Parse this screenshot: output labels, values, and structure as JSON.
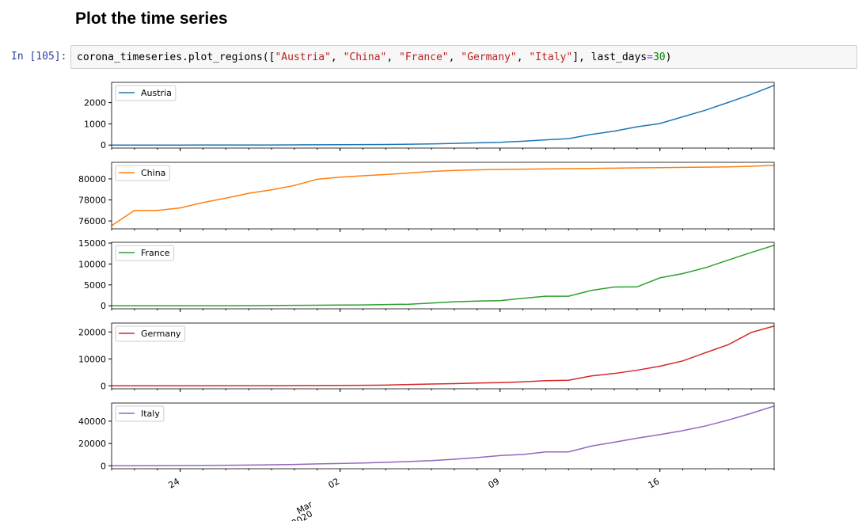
{
  "header": {
    "title": "Plot the time series"
  },
  "cell": {
    "prompt": "In [105]:",
    "code": [
      "corona_timeseries.plot_regions([",
      "\"Austria\"",
      ", ",
      "\"China\"",
      ", ",
      "\"France\"",
      ", ",
      "\"Germany\"",
      ", ",
      "\"Italy\"",
      "], last_days",
      "=",
      "30",
      ")"
    ]
  },
  "chart_data": [
    {
      "type": "line",
      "x": [
        "2020-02-21",
        "2020-02-22",
        "2020-02-23",
        "2020-02-24",
        "2020-02-25",
        "2020-02-26",
        "2020-02-27",
        "2020-02-28",
        "2020-02-29",
        "2020-03-01",
        "2020-03-02",
        "2020-03-03",
        "2020-03-04",
        "2020-03-05",
        "2020-03-06",
        "2020-03-07",
        "2020-03-08",
        "2020-03-09",
        "2020-03-10",
        "2020-03-11",
        "2020-03-12",
        "2020-03-13",
        "2020-03-14",
        "2020-03-15",
        "2020-03-16",
        "2020-03-17",
        "2020-03-18",
        "2020-03-19",
        "2020-03-20",
        "2020-03-21"
      ],
      "xlim": [
        "2020-02-21",
        "2020-03-21"
      ],
      "series": [
        {
          "name": "Austria",
          "color": "#1f77b4",
          "values": [
            0,
            0,
            0,
            0,
            2,
            2,
            3,
            3,
            9,
            14,
            18,
            21,
            29,
            41,
            55,
            79,
            104,
            131,
            182,
            246,
            302,
            504,
            655,
            860,
            1016,
            1332,
            1646,
            2013,
            2388,
            2814
          ]
        }
      ],
      "ylim": [
        -141,
        2955
      ],
      "yticks": [
        0,
        1000,
        2000
      ],
      "legend": "upper left"
    },
    {
      "type": "line",
      "x": [
        "2020-02-21",
        "2020-02-22",
        "2020-02-23",
        "2020-02-24",
        "2020-02-25",
        "2020-02-26",
        "2020-02-27",
        "2020-02-28",
        "2020-02-29",
        "2020-03-01",
        "2020-03-02",
        "2020-03-03",
        "2020-03-04",
        "2020-03-05",
        "2020-03-06",
        "2020-03-07",
        "2020-03-08",
        "2020-03-09",
        "2020-03-10",
        "2020-03-11",
        "2020-03-12",
        "2020-03-13",
        "2020-03-14",
        "2020-03-15",
        "2020-03-16",
        "2020-03-17",
        "2020-03-18",
        "2020-03-19",
        "2020-03-20",
        "2020-03-21"
      ],
      "xlim": [
        "2020-02-21",
        "2020-03-21"
      ],
      "series": [
        {
          "name": "China",
          "color": "#ff7f0e",
          "values": [
            75550,
            77000,
            77000,
            77240,
            77750,
            78170,
            78630,
            78960,
            79380,
            79970,
            80170,
            80300,
            80420,
            80560,
            80710,
            80810,
            80860,
            80900,
            80930,
            80950,
            80980,
            81000,
            81020,
            81050,
            81070,
            81100,
            81120,
            81150,
            81200,
            81293
          ]
        }
      ],
      "ylim": [
        75250,
        81580
      ],
      "yticks": [
        76000,
        78000,
        80000
      ],
      "legend": "upper left"
    },
    {
      "type": "line",
      "x": [
        "2020-02-21",
        "2020-02-22",
        "2020-02-23",
        "2020-02-24",
        "2020-02-25",
        "2020-02-26",
        "2020-02-27",
        "2020-02-28",
        "2020-02-29",
        "2020-03-01",
        "2020-03-02",
        "2020-03-03",
        "2020-03-04",
        "2020-03-05",
        "2020-03-06",
        "2020-03-07",
        "2020-03-08",
        "2020-03-09",
        "2020-03-10",
        "2020-03-11",
        "2020-03-12",
        "2020-03-13",
        "2020-03-14",
        "2020-03-15",
        "2020-03-16",
        "2020-03-17",
        "2020-03-18",
        "2020-03-19",
        "2020-03-20",
        "2020-03-21"
      ],
      "xlim": [
        "2020-02-21",
        "2020-03-21"
      ],
      "series": [
        {
          "name": "France",
          "color": "#2ca02c",
          "values": [
            12,
            12,
            12,
            12,
            14,
            18,
            38,
            57,
            100,
            130,
            191,
            204,
            288,
            380,
            656,
            957,
            1136,
            1219,
            1794,
            2293,
            2293,
            3681,
            4496,
            4532,
            6683,
            7715,
            9124,
            10970,
            12758,
            14463
          ]
        }
      ],
      "ylim": [
        -720,
        15190
      ],
      "yticks": [
        0,
        5000,
        10000,
        15000
      ],
      "legend": "upper left"
    },
    {
      "type": "line",
      "x": [
        "2020-02-21",
        "2020-02-22",
        "2020-02-23",
        "2020-02-24",
        "2020-02-25",
        "2020-02-26",
        "2020-02-27",
        "2020-02-28",
        "2020-02-29",
        "2020-03-01",
        "2020-03-02",
        "2020-03-03",
        "2020-03-04",
        "2020-03-05",
        "2020-03-06",
        "2020-03-07",
        "2020-03-08",
        "2020-03-09",
        "2020-03-10",
        "2020-03-11",
        "2020-03-12",
        "2020-03-13",
        "2020-03-14",
        "2020-03-15",
        "2020-03-16",
        "2020-03-17",
        "2020-03-18",
        "2020-03-19",
        "2020-03-20",
        "2020-03-21"
      ],
      "xlim": [
        "2020-02-21",
        "2020-03-21"
      ],
      "series": [
        {
          "name": "Germany",
          "color": "#d62728",
          "values": [
            16,
            16,
            16,
            16,
            17,
            27,
            46,
            48,
            79,
            130,
            159,
            196,
            262,
            482,
            670,
            799,
            1040,
            1176,
            1457,
            1908,
            2078,
            3675,
            4585,
            5795,
            7272,
            9257,
            12327,
            15320,
            19848,
            22213
          ]
        }
      ],
      "ylim": [
        -1100,
        23320
      ],
      "yticks": [
        0,
        10000,
        20000
      ],
      "legend": "upper left"
    },
    {
      "type": "line",
      "x": [
        "2020-02-21",
        "2020-02-22",
        "2020-02-23",
        "2020-02-24",
        "2020-02-25",
        "2020-02-26",
        "2020-02-27",
        "2020-02-28",
        "2020-02-29",
        "2020-03-01",
        "2020-03-02",
        "2020-03-03",
        "2020-03-04",
        "2020-03-05",
        "2020-03-06",
        "2020-03-07",
        "2020-03-08",
        "2020-03-09",
        "2020-03-10",
        "2020-03-11",
        "2020-03-12",
        "2020-03-13",
        "2020-03-14",
        "2020-03-15",
        "2020-03-16",
        "2020-03-17",
        "2020-03-18",
        "2020-03-19",
        "2020-03-20",
        "2020-03-21"
      ],
      "xlim": [
        "2020-02-21",
        "2020-03-21"
      ],
      "series": [
        {
          "name": "Italy",
          "color": "#9467bd",
          "values": [
            20,
            62,
            155,
            229,
            322,
            453,
            655,
            888,
            1128,
            1694,
            2036,
            2502,
            3089,
            3858,
            4636,
            5883,
            7375,
            9172,
            10149,
            12462,
            12462,
            17660,
            21157,
            24747,
            27980,
            31506,
            35713,
            41035,
            47021,
            53578
          ]
        }
      ],
      "ylim": [
        -2660,
        56260
      ],
      "yticks": [
        0,
        20000,
        40000
      ],
      "legend": "upper left",
      "xticks": [
        {
          "value": "2020-02-24",
          "label": "24"
        },
        {
          "value": "2020-03-02",
          "label": "02"
        },
        {
          "value": "2020-03-09",
          "label": "09"
        },
        {
          "value": "2020-03-16",
          "label": "16"
        }
      ],
      "x_major_label": {
        "value": "2020-03-01",
        "label": [
          "Mar",
          "2020"
        ]
      }
    }
  ]
}
